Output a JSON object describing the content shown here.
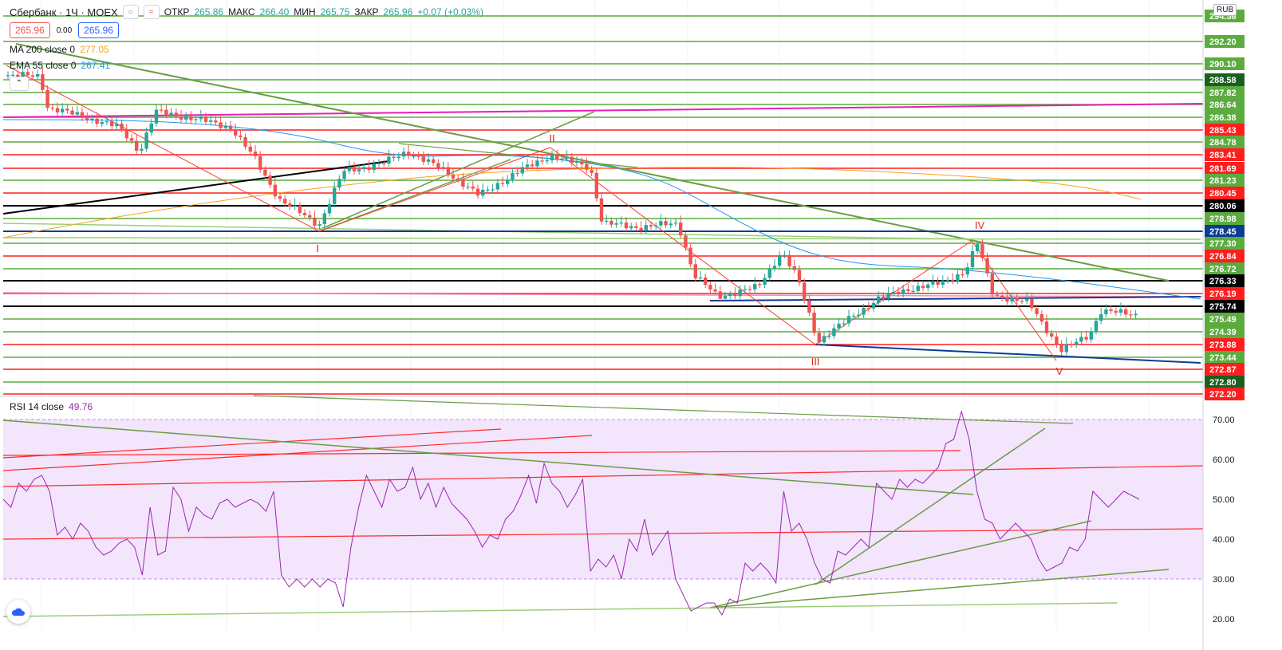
{
  "header": {
    "symbol": "Сбербанк · 1Ч · MOEX",
    "open_label": "ОТКР",
    "open_value": "265.86",
    "high_label": "МАКС",
    "high_value": "266.40",
    "low_label": "МИН",
    "low_value": "265.75",
    "close_label": "ЗАКР",
    "close_value": "265.96",
    "change": "+0.07 (+0.03%)"
  },
  "trade": {
    "sell_price": "265.96",
    "spread": "0.00",
    "buy_price": "265.96"
  },
  "indicators": [
    {
      "label": "MA 200 close 0",
      "value": "277.05",
      "color": "#f7a21b"
    },
    {
      "label": "EMA 55 close 0",
      "value": "267.41",
      "color": "#2196f3"
    }
  ],
  "rsi": {
    "label": "RSI 14 close",
    "value": "49.76",
    "color": "#9c27b0"
  },
  "currency": "RUB",
  "colors": {
    "up": "#26a69a",
    "down": "#ef5350",
    "green_level": "#5cab3f",
    "red_level": "#ff1e1e",
    "dark_level": "#000000",
    "blue_line": "#0b3d91",
    "magenta": "#e91eb4",
    "rsi_band": "#f3e5fc"
  },
  "chart_data": [
    {
      "type": "candlestick",
      "title": "Сбербанк · 1Ч · MOEX",
      "y_tick_labels": [
        "294.58",
        "292.20",
        "290.10",
        "288.58",
        "287.82",
        "286.64",
        "286.38",
        "285.43",
        "284.78",
        "283.41",
        "281.69",
        "281.23",
        "280.45",
        "280.06",
        "278.98",
        "278.45",
        "277.30",
        "276.84",
        "276.72",
        "276.33",
        "276.19",
        "275.74",
        "275.49",
        "274.39",
        "273.88",
        "273.44",
        "272.87",
        "272.80",
        "272.20"
      ],
      "price_levels": [
        {
          "price": "294.58",
          "color": "green"
        },
        {
          "price": "292.20",
          "color": "green"
        },
        {
          "price": "290.10",
          "color": "green"
        },
        {
          "price": "288.58",
          "color": "green",
          "highlight": true
        },
        {
          "price": "287.82",
          "color": "green"
        },
        {
          "price": "286.64",
          "color": "green"
        },
        {
          "price": "286.38",
          "color": "green"
        },
        {
          "price": "285.43",
          "color": "red"
        },
        {
          "price": "284.78",
          "color": "green"
        },
        {
          "price": "283.41",
          "color": "red"
        },
        {
          "price": "281.69",
          "color": "red"
        },
        {
          "price": "281.23",
          "color": "green"
        },
        {
          "price": "280.45",
          "color": "red"
        },
        {
          "price": "280.06",
          "color": "black"
        },
        {
          "price": "278.98",
          "color": "green"
        },
        {
          "price": "278.45",
          "color": "blue"
        },
        {
          "price": "277.30",
          "color": "green"
        },
        {
          "price": "276.84",
          "color": "red"
        },
        {
          "price": "276.72",
          "color": "green"
        },
        {
          "price": "276.33",
          "color": "black"
        },
        {
          "price": "276.19",
          "color": "red"
        },
        {
          "price": "275.74",
          "color": "black"
        },
        {
          "price": "275.49",
          "color": "green"
        },
        {
          "price": "274.39",
          "color": "green"
        },
        {
          "price": "273.88",
          "color": "red"
        },
        {
          "price": "273.44",
          "color": "green"
        },
        {
          "price": "272.87",
          "color": "red"
        },
        {
          "price": "272.80",
          "color": "green",
          "highlight": true
        },
        {
          "price": "272.20",
          "color": "red"
        }
      ],
      "wave_labels": [
        "I",
        "II",
        "III",
        "IV",
        "V"
      ],
      "ma200_close": "277.05",
      "ema55_close": "267.41",
      "grid": true
    },
    {
      "type": "line",
      "title": "RSI 14 close",
      "y_ticks": [
        20,
        30,
        40,
        50,
        60,
        70
      ],
      "ylim": [
        18,
        76
      ],
      "overbought": 70,
      "oversold": 30,
      "last_value": "49.76",
      "values": [
        50,
        48,
        54,
        52,
        55,
        56,
        52,
        41,
        43,
        40,
        44,
        42,
        38,
        36,
        37,
        39,
        40,
        38,
        31,
        48,
        36,
        37,
        53,
        50,
        42,
        48,
        46,
        45,
        49,
        50,
        48,
        49,
        50,
        49,
        47,
        52,
        31,
        28,
        30,
        28,
        30,
        28,
        30,
        29,
        23,
        38,
        48,
        56,
        52,
        48,
        55,
        52,
        53,
        58,
        50,
        54,
        48,
        53,
        49,
        47,
        45,
        42,
        38,
        41,
        40,
        45,
        47,
        51,
        56,
        49,
        59,
        54,
        52,
        48,
        51,
        55,
        32,
        35,
        33,
        36,
        30,
        40,
        37,
        45,
        36,
        39,
        42,
        30,
        26,
        22,
        23,
        24,
        24,
        21,
        25,
        24,
        34,
        32,
        34,
        32,
        29,
        52,
        42,
        44,
        40,
        34,
        30,
        29,
        37,
        36,
        38,
        40,
        38,
        54,
        52,
        50,
        55,
        53,
        55,
        54,
        56,
        58,
        64,
        65,
        72,
        65,
        52,
        45,
        44,
        40,
        42,
        44,
        42,
        40,
        35,
        32,
        33,
        34,
        38,
        37,
        40,
        52,
        50,
        48,
        50,
        52,
        51,
        50
      ]
    }
  ]
}
